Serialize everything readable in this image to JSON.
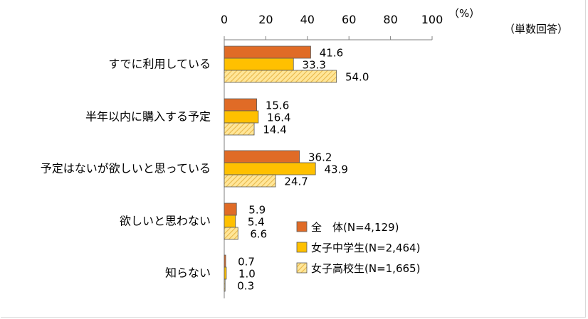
{
  "chart_data": {
    "type": "bar",
    "orientation": "horizontal",
    "unit_label": "（%）",
    "note": "（単数回答）",
    "xlim": [
      0,
      100
    ],
    "xticks": [
      0,
      20,
      40,
      60,
      80,
      100
    ],
    "grid": false,
    "legend_position": "bottom-right",
    "categories": [
      "すでに利用している",
      "半年以内に購入する予定",
      "予定はないが欲しいと思っている",
      "欲しいと思わない",
      "知らない"
    ],
    "series": [
      {
        "name": "全　体(N=4,129)",
        "values": [
          41.6,
          15.6,
          36.2,
          5.9,
          0.7
        ],
        "color": "#E06B26",
        "pattern": "solid"
      },
      {
        "name": "女子中学生(N=2,464)",
        "values": [
          33.3,
          16.4,
          43.9,
          5.4,
          1.0
        ],
        "color": "#FFC000",
        "pattern": "solid"
      },
      {
        "name": "女子高校生(N=1,665)",
        "values": [
          54.0,
          14.4,
          24.7,
          6.6,
          0.3
        ],
        "color": "#FFE699",
        "pattern": "hatched"
      }
    ],
    "colors": {
      "stroke": "#595959",
      "hatch": "#E9B84A",
      "text": "#000000"
    }
  }
}
